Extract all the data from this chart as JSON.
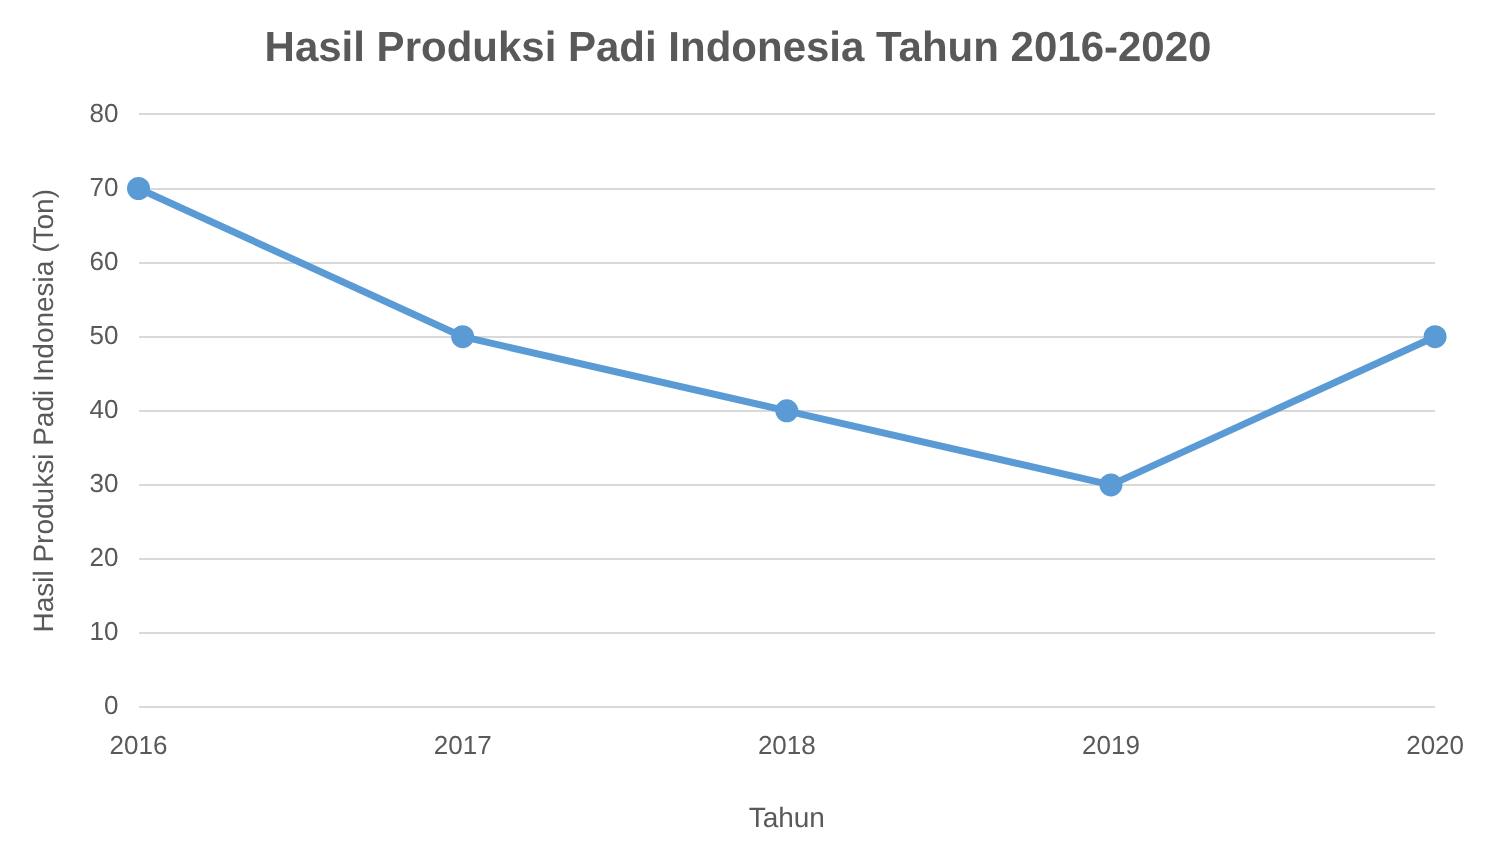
{
  "chart_data": {
    "type": "line",
    "title": "Hasil Produksi Padi Indonesia Tahun 2016-2020",
    "xlabel": "Tahun",
    "ylabel": "Hasil Produksi Padi Indonesia (Ton)",
    "categories": [
      "2016",
      "2017",
      "2018",
      "2019",
      "2020"
    ],
    "series": [
      {
        "color": "#5b9bd5",
        "values": [
          70,
          50,
          40,
          30,
          50
        ]
      }
    ],
    "ylim": [
      0,
      80
    ],
    "yticks": [
      0,
      10,
      20,
      30,
      40,
      50,
      60,
      70,
      80
    ],
    "grid": "y",
    "legend": false,
    "marker": "circle",
    "line_style": "solid"
  }
}
